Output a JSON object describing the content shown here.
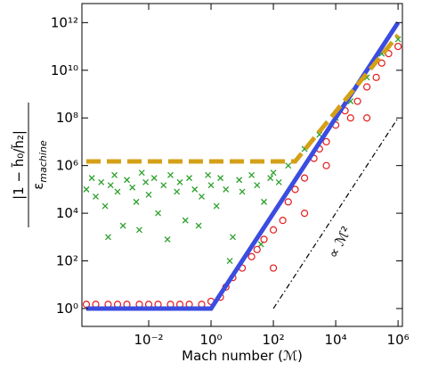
{
  "chart_data": {
    "type": "scatter",
    "xlabel": "Mach number (ℳ)",
    "ylabel_numerator": "|1 − h̃₀/h̃₂|",
    "ylabel_denominator": "ε",
    "ylabel_subscript": "machine",
    "annotation": "∝ ℳ²",
    "xlog": true,
    "ylog": true,
    "xlim": [
      7.2e-05,
      1380000.0
    ],
    "ylim": [
      0.178,
      6300000000000.0
    ],
    "xticks": [
      {
        "value": 0.01,
        "label": "10⁻²"
      },
      {
        "value": 1,
        "label": "10⁰"
      },
      {
        "value": 100,
        "label": "10²"
      },
      {
        "value": 10000,
        "label": "10⁴"
      },
      {
        "value": 1000000,
        "label": "10⁶"
      }
    ],
    "yticks": [
      {
        "value": 1,
        "label": "10⁰"
      },
      {
        "value": 100,
        "label": "10²"
      },
      {
        "value": 10000,
        "label": "10⁴"
      },
      {
        "value": 1000000,
        "label": "10⁶"
      },
      {
        "value": 100000000,
        "label": "10⁸"
      },
      {
        "value": 10000000000,
        "label": "10¹⁰"
      },
      {
        "value": 1000000000000,
        "label": "10¹²"
      }
    ],
    "series": [
      {
        "color": "#2ca02c",
        "style": "cross",
        "x": [
          0.0001,
          0.00015,
          0.0002,
          0.0003,
          0.0004,
          0.0006,
          0.0008,
          0.001,
          0.0015,
          0.002,
          0.003,
          0.004,
          0.006,
          0.008,
          0.01,
          0.015,
          0.02,
          0.03,
          0.05,
          0.08,
          0.1,
          0.15,
          0.2,
          0.3,
          0.5,
          0.8,
          1,
          1.5,
          2,
          3,
          5,
          8,
          10,
          20,
          30,
          50,
          80,
          100,
          150,
          0.0005,
          0.005,
          0.04,
          0.4,
          4,
          40,
          300,
          1000,
          3000,
          10000,
          30000,
          100000,
          300000,
          1000000
        ],
        "values": [
          100000,
          300000,
          50000,
          200000,
          20000,
          150000,
          400000,
          80000,
          3000,
          250000,
          120000,
          30000,
          500000,
          200000,
          60000,
          300000,
          10000,
          150000,
          400000,
          80000,
          200000,
          5000,
          300000,
          100000,
          50000,
          400000,
          150000,
          20000,
          300000,
          100000,
          1000,
          250000,
          80000,
          400000,
          150000,
          30000,
          300000,
          500000,
          200000,
          1000,
          2000,
          800,
          3000,
          100,
          500,
          1000000,
          5000000,
          20000000,
          100000000,
          500000000,
          5000000000,
          50000000000,
          200000000000
        ]
      },
      {
        "color": "#e41a1c",
        "style": "circle",
        "x": [
          0.0001,
          0.0002,
          0.0005,
          0.001,
          0.002,
          0.005,
          0.01,
          0.02,
          0.05,
          0.1,
          0.2,
          0.5,
          1,
          2,
          3,
          5,
          10,
          20,
          30,
          50,
          100,
          100,
          200,
          300,
          500,
          1000,
          1000,
          2000,
          3000,
          5000,
          5000,
          10000,
          20000,
          30000,
          50000,
          100000,
          100000,
          200000,
          300000,
          500000,
          1000000
        ],
        "values": [
          1.5,
          1.5,
          1.5,
          1.5,
          1.5,
          1.5,
          1.5,
          1.5,
          1.5,
          1.5,
          1.5,
          1.5,
          2,
          3,
          8,
          20,
          50,
          150,
          300,
          800,
          2000,
          50,
          5000,
          30000,
          100000,
          300000,
          10000,
          2000000,
          5000000,
          10000000,
          1000000,
          50000000,
          200000000,
          100000000,
          500000000,
          2000000000,
          100000000,
          5000000000,
          20000000000,
          50000000000,
          100000000000
        ]
      },
      {
        "color": "#3b4ce0",
        "style": "solid",
        "x": [
          0.0001,
          1,
          1000000
        ],
        "values": [
          1,
          1,
          1000000000000
        ]
      },
      {
        "color": "#d4a017",
        "style": "dashed",
        "x": [
          0.0001,
          500,
          1000000
        ],
        "values": [
          1500000,
          1500000,
          300000000000
        ]
      },
      {
        "color": "#000000",
        "style": "dashdot",
        "x": [
          100,
          1000000
        ],
        "values": [
          1,
          100000000
        ]
      }
    ]
  }
}
